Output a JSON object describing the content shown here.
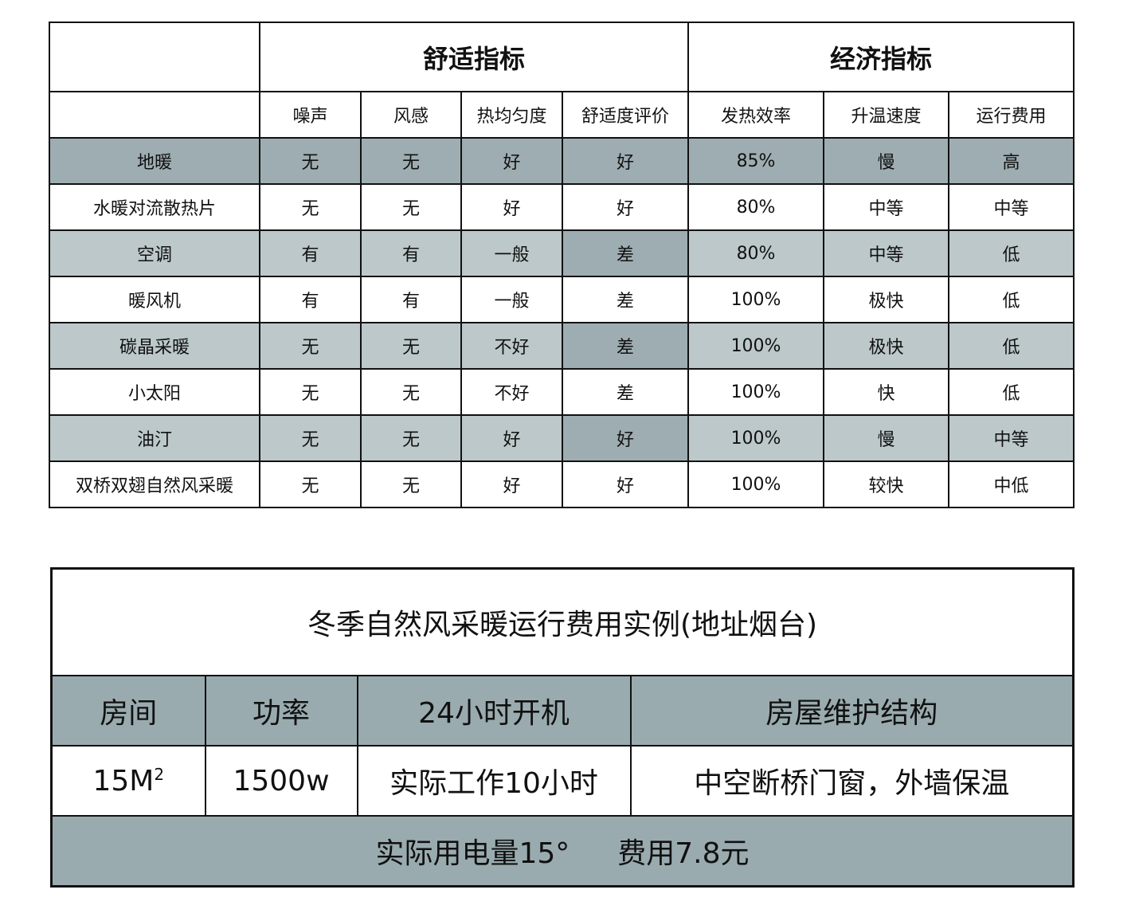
{
  "comparison_table": {
    "group_headers": [
      "舒适指标",
      "经济指标"
    ],
    "column_headers": [
      "噪声",
      "风感",
      "热均匀度",
      "舒适度评价",
      "发热效率",
      "升温速度",
      "运行费用"
    ],
    "rows": [
      {
        "name": "地暖",
        "values": [
          "无",
          "无",
          "好",
          "好",
          "85%",
          "慢",
          "高"
        ]
      },
      {
        "name": "水暖对流散热片",
        "values": [
          "无",
          "无",
          "好",
          "好",
          "80%",
          "中等",
          "中等"
        ]
      },
      {
        "name": "空调",
        "values": [
          "有",
          "有",
          "一般",
          "差",
          "80%",
          "中等",
          "低"
        ]
      },
      {
        "name": "暖风机",
        "values": [
          "有",
          "有",
          "一般",
          "差",
          "100%",
          "极快",
          "低"
        ]
      },
      {
        "name": "碳晶采暖",
        "values": [
          "无",
          "无",
          "不好",
          "差",
          "100%",
          "极快",
          "低"
        ]
      },
      {
        "name": "小太阳",
        "values": [
          "无",
          "无",
          "不好",
          "差",
          "100%",
          "快",
          "低"
        ]
      },
      {
        "name": "油汀",
        "values": [
          "无",
          "无",
          "好",
          "好",
          "100%",
          "慢",
          "中等"
        ]
      },
      {
        "name": "双桥双翅自然风采暖",
        "values": [
          "无",
          "无",
          "好",
          "好",
          "100%",
          "较快",
          "中低"
        ]
      }
    ]
  },
  "cost_table": {
    "title": "冬季自然风采暖运行费用实例(地址烟台)",
    "headers": [
      "房间",
      "功率",
      "24小时开机",
      "房屋维护结构"
    ],
    "values": {
      "room": "15M",
      "room_sup": "2",
      "power": "1500w",
      "hours": "实际工作10小时",
      "structure": "中空断桥门窗，外墙保温"
    },
    "footer": {
      "usage": "实际用电量15°",
      "cost": "费用7.8元"
    }
  },
  "colors": {
    "shade_dark": "#9eadb1",
    "shade_light": "#bcc8ca"
  }
}
